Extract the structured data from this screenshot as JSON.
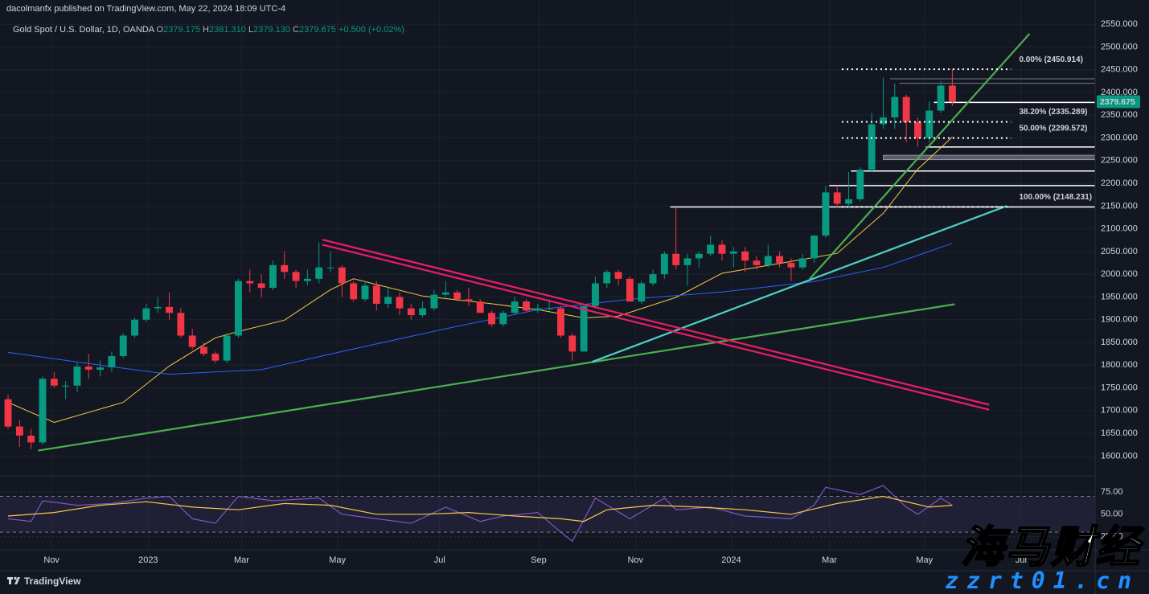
{
  "publisher": "dacolmanfx published on TradingView.com, May 22, 2024 18:09 UTC-4",
  "footer": "TradingView",
  "watermark": {
    "title": "海马财经",
    "site": "zzrt01.cn"
  },
  "chart_data": [
    {
      "type": "candlestick",
      "title": "Gold Spot / U.S. Dollar, 1D, OANDA",
      "ohlc": [
        {
          "key": "O",
          "value": "2379.175"
        },
        {
          "key": "H",
          "value": "2381.310"
        },
        {
          "key": "L",
          "value": "2379.130"
        },
        {
          "key": "C",
          "value": "2379.675"
        }
      ],
      "change": "+0.500 (+0.02%)",
      "up_color": "#089981",
      "down_color": "#f23645",
      "open": [
        1725,
        1665,
        1645,
        1630,
        1770,
        1755,
        1755,
        1797,
        1790,
        1795,
        1820,
        1865,
        1900,
        1925,
        1928,
        1915,
        1865,
        1840,
        1825,
        1810,
        1865,
        1985,
        1980,
        1970,
        2020,
        2005,
        1985,
        1990,
        2015,
        2015,
        1980,
        1945,
        1975,
        1935,
        1950,
        1925,
        1910,
        1925,
        1955,
        1960,
        1945,
        1940,
        1915,
        1890,
        1915,
        1940,
        1920,
        1925,
        1925,
        1865,
        1830,
        1930,
        1980,
        2005,
        1990,
        1940,
        1980,
        2000,
        2045,
        2020,
        2035,
        2045,
        2065,
        2045,
        2050,
        2030,
        2020,
        2040,
        2025,
        2015,
        2035,
        2085,
        2180,
        2155,
        2165,
        2230,
        2330,
        2345,
        2390,
        2335,
        2300,
        2360,
        2415
      ],
      "high": [
        1735,
        1680,
        1660,
        1775,
        1785,
        1765,
        1805,
        1825,
        1810,
        1830,
        1870,
        1905,
        1935,
        1950,
        1960,
        1925,
        1880,
        1850,
        1830,
        1870,
        1990,
        2010,
        2000,
        2030,
        2050,
        2010,
        2010,
        2070,
        2050,
        2020,
        1985,
        1985,
        1985,
        1970,
        1960,
        1935,
        1940,
        1965,
        1985,
        1965,
        1970,
        1945,
        1920,
        1920,
        1950,
        1945,
        1935,
        1945,
        1930,
        1870,
        1935,
        1995,
        2010,
        2010,
        1995,
        1985,
        2010,
        2050,
        2148,
        2045,
        2050,
        2085,
        2075,
        2060,
        2060,
        2040,
        2065,
        2050,
        2035,
        2045,
        2085,
        2195,
        2195,
        2225,
        2235,
        2355,
        2432,
        2420,
        2395,
        2345,
        2380,
        2425,
        2451
      ],
      "low": [
        1660,
        1620,
        1615,
        1625,
        1750,
        1725,
        1740,
        1770,
        1775,
        1785,
        1815,
        1860,
        1895,
        1915,
        1900,
        1860,
        1835,
        1820,
        1805,
        1805,
        1860,
        1960,
        1950,
        1965,
        1990,
        1970,
        1975,
        1980,
        2005,
        1950,
        1940,
        1940,
        1920,
        1925,
        1910,
        1900,
        1905,
        1920,
        1950,
        1940,
        1930,
        1915,
        1885,
        1885,
        1910,
        1915,
        1915,
        1920,
        1860,
        1810,
        1830,
        1925,
        1970,
        1975,
        1940,
        1935,
        1975,
        1990,
        2010,
        1975,
        2015,
        2040,
        2030,
        2015,
        2005,
        2010,
        2015,
        2015,
        1985,
        2010,
        2025,
        2080,
        2145,
        2145,
        2160,
        2225,
        2320,
        2320,
        2290,
        2280,
        2290,
        2355,
        2370
      ],
      "close": [
        1665,
        1645,
        1630,
        1770,
        1755,
        1755,
        1797,
        1790,
        1795,
        1820,
        1865,
        1900,
        1925,
        1928,
        1915,
        1865,
        1840,
        1825,
        1810,
        1865,
        1985,
        1980,
        1970,
        2020,
        2005,
        1985,
        1990,
        2015,
        2015,
        1980,
        1945,
        1975,
        1935,
        1950,
        1925,
        1910,
        1925,
        1955,
        1960,
        1945,
        1940,
        1915,
        1890,
        1915,
        1940,
        1920,
        1925,
        1925,
        1865,
        1830,
        1930,
        1980,
        2005,
        1990,
        1940,
        1980,
        2000,
        2045,
        2020,
        2035,
        2045,
        2065,
        2045,
        2050,
        2030,
        2020,
        2040,
        2025,
        2015,
        2035,
        2085,
        2180,
        2155,
        2165,
        2230,
        2330,
        2345,
        2390,
        2335,
        2300,
        2360,
        2415,
        2380
      ],
      "last_price": 2379.675,
      "overlays": [
        {
          "color": "#f7c948",
          "x": [
            0,
            4,
            10,
            14,
            18,
            20,
            24,
            28,
            30,
            36,
            42,
            46,
            50,
            53,
            58,
            62,
            68,
            72,
            76,
            79,
            82
          ],
          "values": [
            1718,
            1674,
            1718,
            1798,
            1860,
            1874,
            1899,
            1966,
            1990,
            1952,
            1935,
            1922,
            1904,
            1908,
            1949,
            2002,
            2028,
            2046,
            2134,
            2231,
            2302
          ]
        },
        {
          "color": "#2962ff",
          "x": [
            0,
            8,
            14,
            22,
            29,
            38,
            46,
            54,
            62,
            70,
            76,
            82
          ],
          "values": [
            1828,
            1800,
            1780,
            1790,
            1830,
            1880,
            1922,
            1945,
            1961,
            1984,
            2015,
            2068
          ]
        }
      ],
      "trendlines": [
        {
          "color": "#4caf50",
          "x": [
            2.6,
            82.2
          ],
          "values": [
            1612,
            1934
          ]
        },
        {
          "color": "#4dd0c4",
          "x": [
            50.7,
            86.7
          ],
          "values": [
            1807,
            2150
          ]
        },
        {
          "color": "#4caf50",
          "x": [
            69.6,
            88.7
          ],
          "values": [
            1989,
            2529
          ]
        },
        {
          "color": "#e91e63",
          "x": [
            27.3,
            85.2
          ],
          "values": [
            2076,
            1713
          ]
        },
        {
          "color": "#e91e63",
          "x": [
            27.3,
            85.2
          ],
          "values": [
            2065,
            1702
          ]
        }
      ],
      "levels": [
        {
          "value": 2430,
          "x": 76.6,
          "color": "#787b86"
        },
        {
          "value": 2420,
          "x": 77.4,
          "color": "#787b86"
        },
        {
          "value": 2378,
          "x": 80.4,
          "color": "#ffffff"
        },
        {
          "value": 2280,
          "x": 79.7,
          "color": "#ffffff"
        },
        {
          "value": 2227,
          "x": 73.2,
          "color": "#ffffff"
        },
        {
          "value": 2195,
          "x": 71.3,
          "color": "#ffffff"
        },
        {
          "value": 2148,
          "x": 57.5,
          "color": "#ffffff"
        }
      ],
      "zone": {
        "range": [
          2252,
          2262
        ],
        "x": 76,
        "color": "#787b86"
      },
      "fib_x": [
        72.4,
        87.1
      ],
      "fib": [
        {
          "label": "0.00% (2450.914)",
          "value": 2450.914
        },
        {
          "label": "38.20% (2335.289)",
          "value": 2335.289
        },
        {
          "label": "50.00% (2299.572)",
          "value": 2299.572
        },
        {
          "label": "100.00% (2148.231)",
          "value": 2148.231
        }
      ],
      "xlim": [
        -0.7,
        94.4
      ],
      "xticks": [
        {
          "value": 3.78,
          "label": "Nov"
        },
        {
          "value": 12.17,
          "label": "2023"
        },
        {
          "value": 20.28,
          "label": "Mar"
        },
        {
          "value": 28.6,
          "label": "May"
        },
        {
          "value": 37.48,
          "label": "Jul"
        },
        {
          "value": 46.08,
          "label": "Sep"
        },
        {
          "value": 54.48,
          "label": "Nov"
        },
        {
          "value": 62.8,
          "label": "2024"
        },
        {
          "value": 71.33,
          "label": "Mar"
        },
        {
          "value": 79.58,
          "label": "May"
        },
        {
          "value": 87.97,
          "label": "Jul"
        }
      ],
      "ylim": [
        1560,
        2598
      ],
      "yticks": [
        {
          "value": 1600,
          "label": "1600.000"
        },
        {
          "value": 1650,
          "label": "1650.000"
        },
        {
          "value": 1700,
          "label": "1700.000"
        },
        {
          "value": 1750,
          "label": "1750.000"
        },
        {
          "value": 1800,
          "label": "1800.000"
        },
        {
          "value": 1850,
          "label": "1850.000"
        },
        {
          "value": 1900,
          "label": "1900.000"
        },
        {
          "value": 1950,
          "label": "1950.000"
        },
        {
          "value": 2000,
          "label": "2000.000"
        },
        {
          "value": 2050,
          "label": "2050.000"
        },
        {
          "value": 2100,
          "label": "2100.000"
        },
        {
          "value": 2150,
          "label": "2150.000"
        },
        {
          "value": 2200,
          "label": "2200.000"
        },
        {
          "value": 2250,
          "label": "2250.000"
        },
        {
          "value": 2300,
          "label": "2300.000"
        },
        {
          "value": 2350,
          "label": "2350.000"
        },
        {
          "value": 2400,
          "label": "2400.000"
        },
        {
          "value": 2450,
          "label": "2450.000"
        },
        {
          "value": 2500,
          "label": "2500.000"
        },
        {
          "value": 2550,
          "label": "2550.000"
        }
      ],
      "grid": true
    },
    {
      "type": "line",
      "series": [
        {
          "color": "#7e57c2",
          "x": [
            0,
            2,
            3,
            6,
            9,
            12,
            14,
            16,
            18,
            20,
            23,
            27,
            29,
            32,
            35,
            38,
            41,
            43,
            46,
            48,
            49,
            51,
            54,
            57,
            58,
            61,
            64,
            68,
            70,
            71,
            74,
            76,
            78,
            79,
            81,
            82
          ],
          "values": [
            45,
            42,
            65,
            60,
            62,
            68,
            70,
            45,
            40,
            70,
            65,
            68,
            50,
            45,
            40,
            58,
            42,
            48,
            52,
            30,
            20,
            68,
            45,
            68,
            55,
            58,
            48,
            45,
            60,
            80,
            72,
            82,
            58,
            50,
            68,
            60
          ]
        },
        {
          "color": "#f7c948",
          "x": [
            0,
            4,
            8,
            12,
            16,
            20,
            24,
            28,
            32,
            36,
            40,
            44,
            48,
            50,
            52,
            56,
            60,
            64,
            68,
            72,
            76,
            80,
            82
          ],
          "values": [
            48,
            52,
            60,
            64,
            58,
            55,
            62,
            60,
            50,
            50,
            52,
            48,
            45,
            42,
            55,
            60,
            58,
            55,
            50,
            62,
            70,
            58,
            60
          ]
        }
      ],
      "band": [
        30,
        70
      ],
      "xlim": [
        -0.7,
        94.4
      ],
      "ylim": [
        14,
        91
      ],
      "yticks": [
        {
          "value": 75,
          "label": "75.00"
        },
        {
          "value": 50,
          "label": "50.00"
        },
        {
          "value": 25,
          "label": "25.00"
        }
      ]
    }
  ]
}
